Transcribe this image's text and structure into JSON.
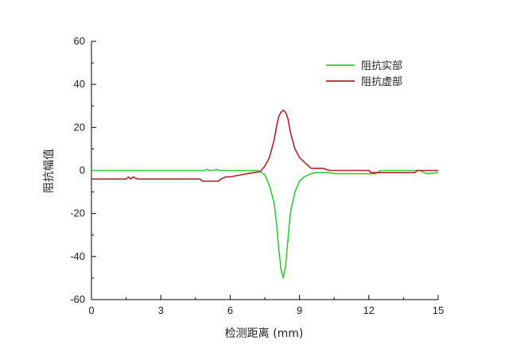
{
  "chart_data": {
    "type": "line",
    "title": "",
    "xlabel": "检测距离 (mm)",
    "ylabel": "阻抗幅值",
    "xlim": [
      0,
      15
    ],
    "ylim": [
      -60,
      60
    ],
    "xticks": [
      0,
      3,
      6,
      9,
      12,
      15
    ],
    "yticks": [
      -60,
      -40,
      -20,
      0,
      20,
      40,
      60
    ],
    "grid": false,
    "legend_position": "top-right",
    "series": [
      {
        "name": "阻抗实部",
        "color": "#33cc33",
        "x": [
          0,
          4.9,
          5.0,
          5.1,
          5.3,
          5.4,
          5.5,
          7.2,
          7.5,
          7.7,
          7.9,
          8.0,
          8.1,
          8.2,
          8.3,
          8.4,
          8.5,
          8.6,
          8.8,
          9.0,
          9.2,
          9.5,
          9.7,
          10.0,
          10.3,
          10.5,
          12.3,
          12.5,
          14.2,
          14.5,
          15.0
        ],
        "y": [
          0,
          0,
          0.6,
          0,
          0,
          0.6,
          0,
          0,
          -2,
          -7,
          -15,
          -24,
          -36,
          -46,
          -50,
          -44,
          -32,
          -20,
          -10,
          -5,
          -3,
          -1.5,
          -1,
          -1,
          -1,
          -1.5,
          -1.5,
          0,
          0,
          -1.5,
          -1
        ]
      },
      {
        "name": "阻抗虚部",
        "color": "#b22222",
        "x": [
          0,
          1.5,
          1.6,
          1.7,
          1.8,
          1.9,
          2.0,
          4.7,
          4.8,
          5.5,
          5.6,
          5.8,
          6.0,
          6.5,
          7.0,
          7.3,
          7.5,
          7.7,
          7.9,
          8.0,
          8.1,
          8.2,
          8.3,
          8.4,
          8.5,
          8.6,
          8.8,
          9.0,
          9.3,
          9.5,
          9.8,
          10.0,
          10.3,
          12.0,
          12.1,
          14.0,
          14.1,
          15.0
        ],
        "y": [
          -4,
          -4,
          -3,
          -4,
          -3,
          -3.5,
          -4,
          -4,
          -5,
          -5,
          -4,
          -3,
          -3,
          -2,
          -1,
          -0.5,
          2,
          6,
          14,
          20,
          25,
          27,
          28,
          27,
          24,
          18,
          10,
          6,
          3,
          1,
          1,
          1,
          0,
          0,
          -1,
          -1,
          0,
          0
        ]
      }
    ]
  }
}
